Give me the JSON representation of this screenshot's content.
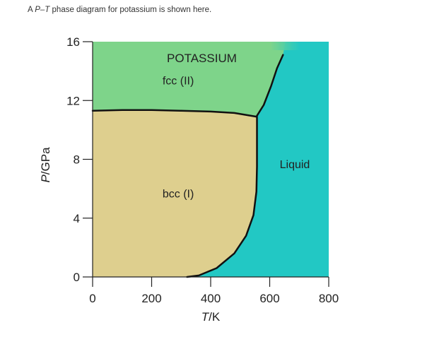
{
  "caption": {
    "prefix": "A ",
    "italic": "P–T",
    "suffix": " phase diagram for potassium is shown here."
  },
  "chart_data": {
    "type": "area",
    "title": "POTASSIUM",
    "xlabel": "T/K",
    "ylabel": "P/GPa",
    "xlim": [
      0,
      800
    ],
    "ylim": [
      0,
      16
    ],
    "xticks": [
      0,
      200,
      400,
      600,
      800
    ],
    "yticks": [
      0,
      4,
      8,
      12,
      16
    ],
    "grid": false,
    "colors": {
      "fcc": "#7ed48a",
      "bcc": "#decf8e",
      "liquid": "#22c8c4",
      "line": "#111111"
    },
    "regions": [
      {
        "label": "fcc (II)",
        "at": [
          290,
          13.1
        ]
      },
      {
        "label": "bcc (I)",
        "at": [
          290,
          5.4
        ]
      },
      {
        "label": "Liquid",
        "at": [
          685,
          7.4
        ]
      }
    ],
    "boundaries": {
      "bcc_fcc": [
        [
          0,
          11.3
        ],
        [
          100,
          11.35
        ],
        [
          200,
          11.35
        ],
        [
          300,
          11.3
        ],
        [
          400,
          11.25
        ],
        [
          480,
          11.15
        ],
        [
          555,
          10.9
        ]
      ],
      "melting": [
        [
          320,
          0
        ],
        [
          360,
          0.1
        ],
        [
          420,
          0.6
        ],
        [
          480,
          1.6
        ],
        [
          520,
          2.8
        ],
        [
          545,
          4.2
        ],
        [
          555,
          5.8
        ],
        [
          557,
          7.5
        ],
        [
          557,
          10.9
        ]
      ],
      "fcc_liquid": [
        [
          555,
          10.9
        ],
        [
          580,
          11.7
        ],
        [
          605,
          13.0
        ],
        [
          625,
          14.2
        ],
        [
          645,
          15.1
        ]
      ]
    }
  }
}
